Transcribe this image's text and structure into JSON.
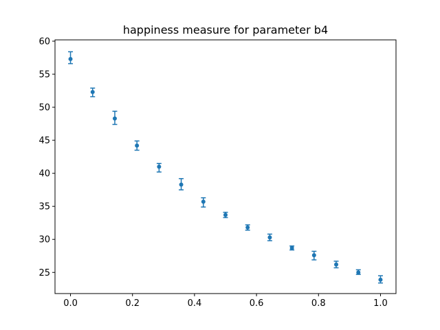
{
  "chart_data": {
    "type": "scatter",
    "title": "happiness measure for parameter b4",
    "xlabel": "",
    "ylabel": "",
    "xlim": [
      -0.05,
      1.05
    ],
    "ylim": [
      21.8,
      60.2
    ],
    "x_ticks": [
      0.0,
      0.2,
      0.4,
      0.6,
      0.8,
      1.0
    ],
    "x_tick_labels": [
      "0.0",
      "0.2",
      "0.4",
      "0.6",
      "0.8",
      "1.0"
    ],
    "y_ticks": [
      25,
      30,
      35,
      40,
      45,
      50,
      55,
      60
    ],
    "y_tick_labels": [
      "25",
      "30",
      "35",
      "40",
      "45",
      "50",
      "55",
      "60"
    ],
    "grid": false,
    "color": "#1f77b4",
    "series": [
      {
        "x": [
          0.0,
          0.0714,
          0.1429,
          0.2143,
          0.2857,
          0.3571,
          0.4286,
          0.5,
          0.5714,
          0.6429,
          0.7143,
          0.7857,
          0.8571,
          0.9286,
          1.0
        ],
        "y": [
          57.3,
          52.3,
          48.3,
          44.2,
          41.0,
          38.3,
          35.7,
          33.7,
          31.8,
          30.3,
          28.7,
          27.6,
          26.2,
          25.0,
          23.9
        ],
        "yerr_low": [
          0.7,
          0.7,
          0.9,
          0.7,
          0.8,
          0.8,
          0.8,
          0.4,
          0.4,
          0.5,
          0.3,
          0.7,
          0.5,
          0.3,
          0.5
        ],
        "yerr_high": [
          1.1,
          0.6,
          1.1,
          0.7,
          0.5,
          0.9,
          0.6,
          0.4,
          0.4,
          0.5,
          0.3,
          0.6,
          0.5,
          0.4,
          0.6
        ]
      }
    ]
  }
}
